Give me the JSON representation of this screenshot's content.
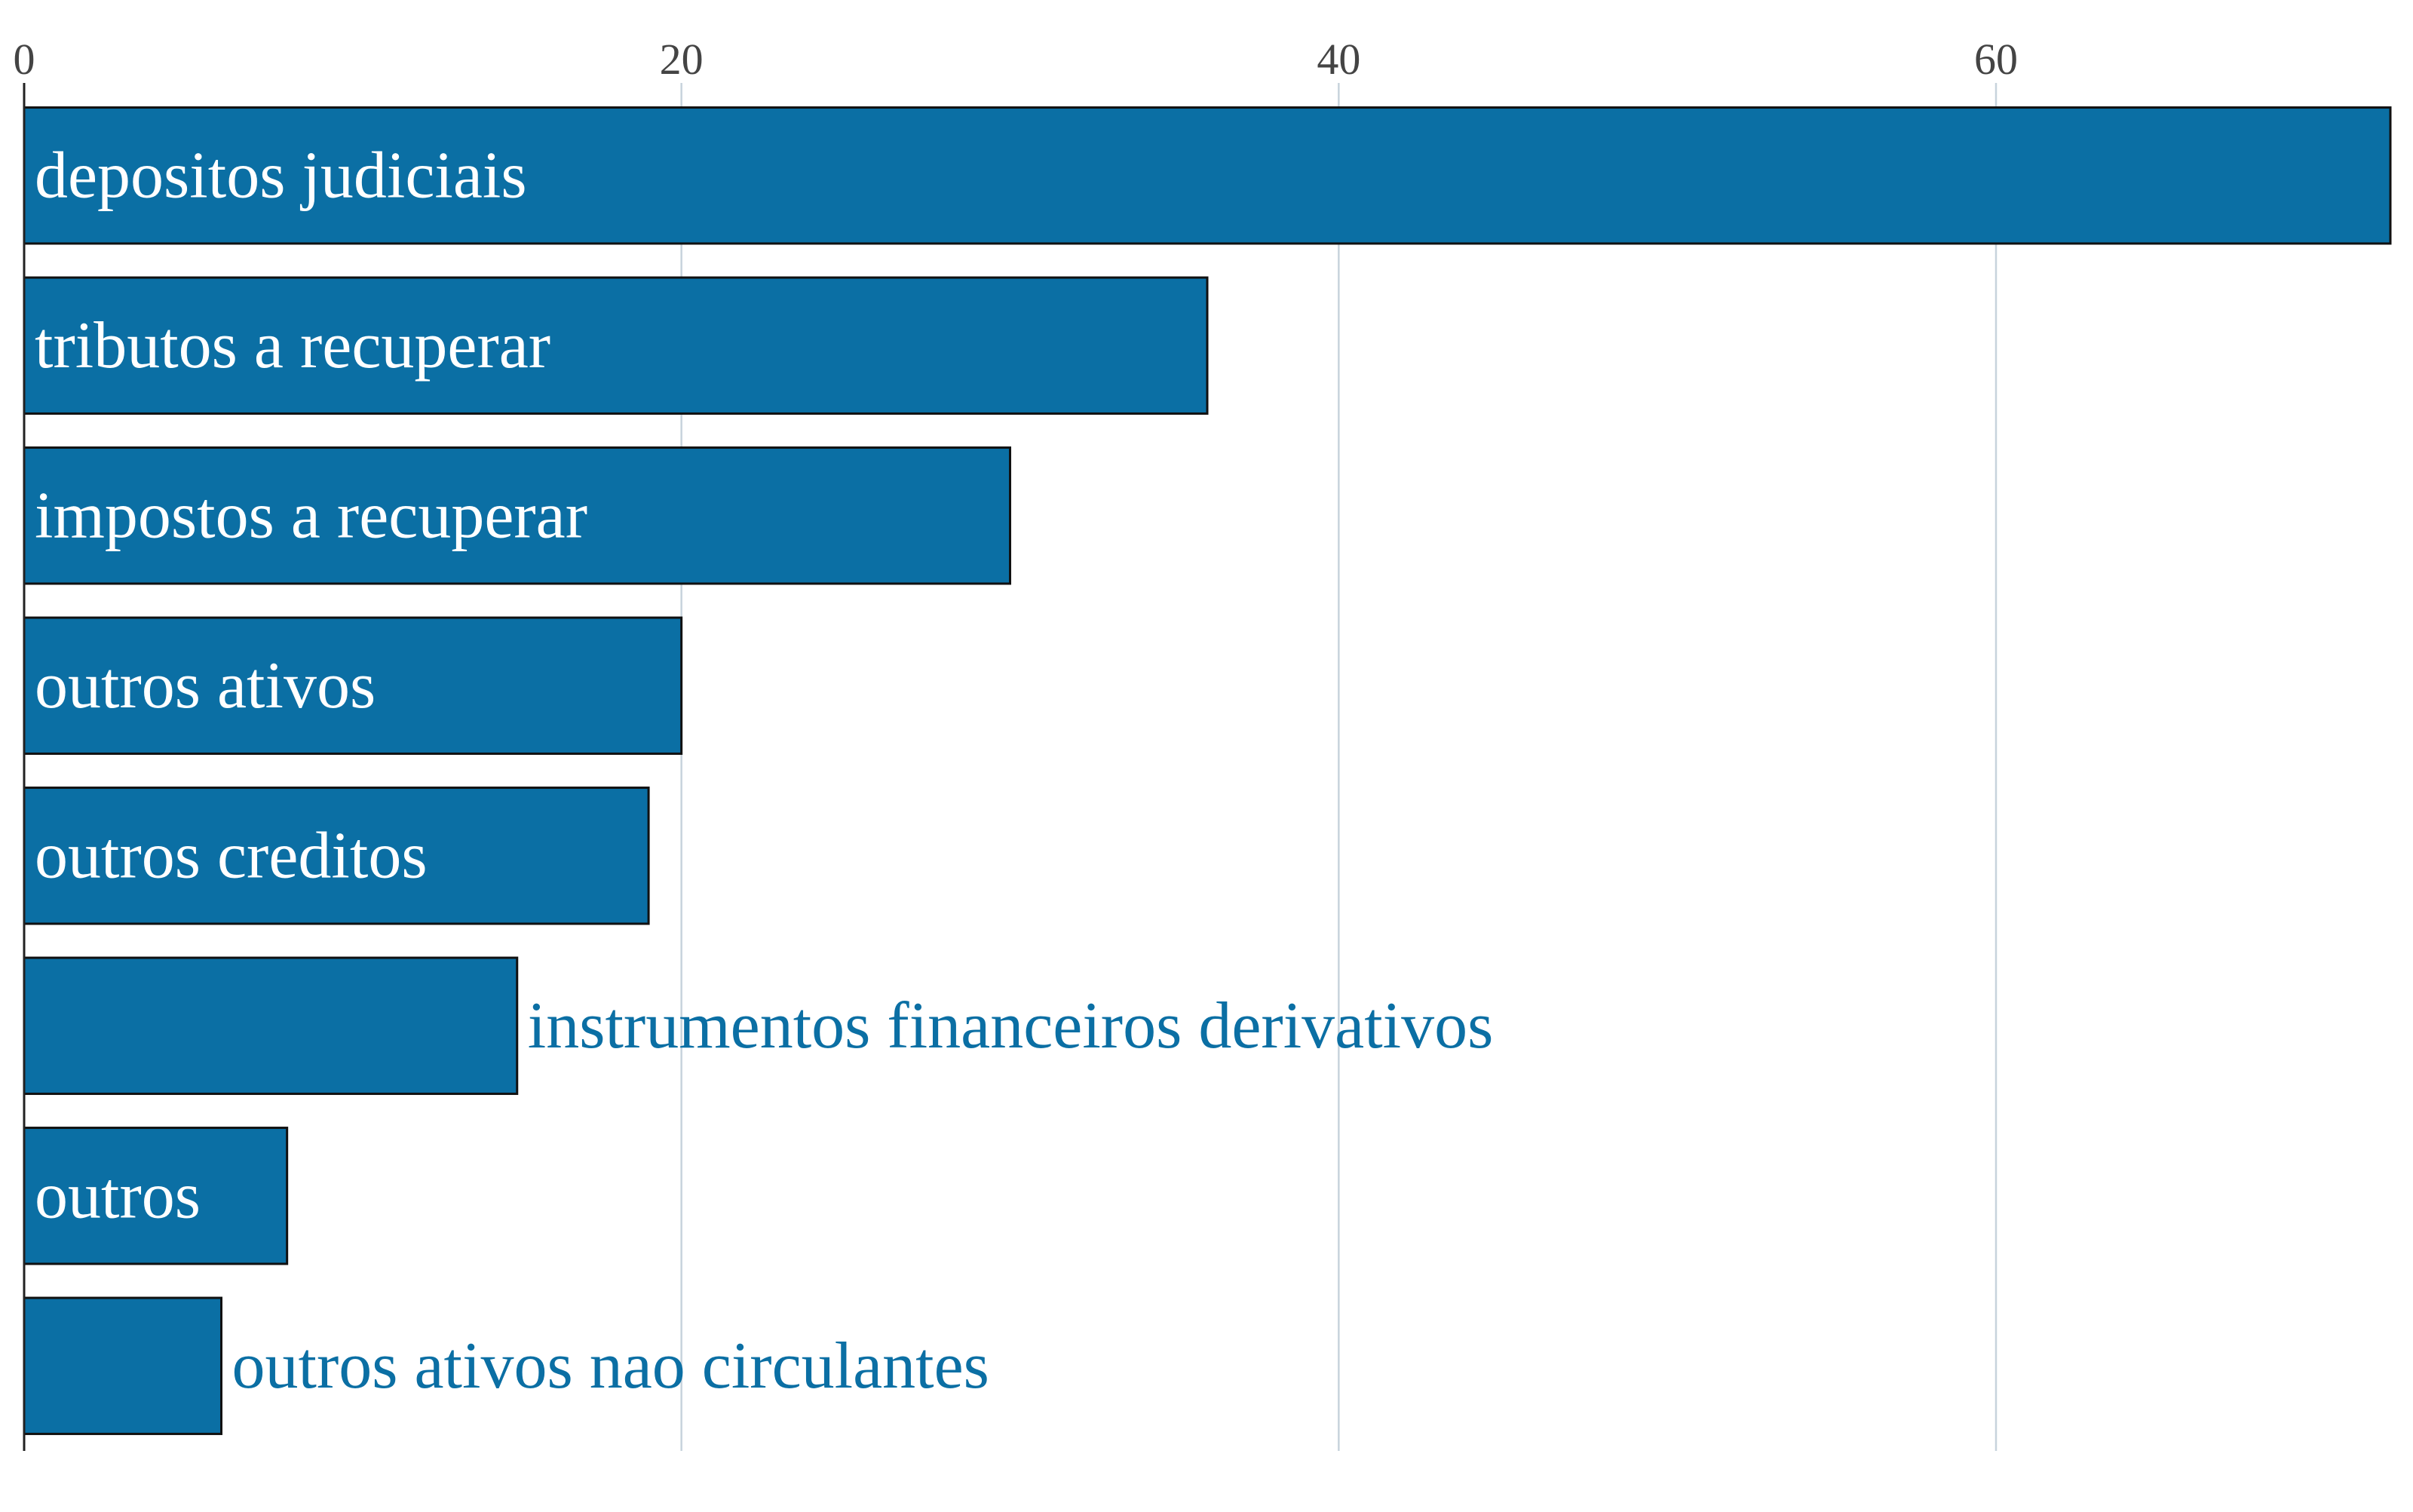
{
  "chart_data": {
    "type": "bar",
    "orientation": "horizontal",
    "categories": [
      "depositos judiciais",
      "tributos a recuperar",
      "impostos a recuperar",
      "outros ativos",
      "outros creditos",
      "instrumentos financeiros derivativos",
      "outros",
      "outros ativos nao circulantes"
    ],
    "values": [
      72,
      36,
      30,
      20,
      19,
      15,
      8,
      6
    ],
    "xlim": [
      0,
      72
    ],
    "x_ticks": [
      0,
      20,
      40,
      60
    ],
    "x_tick_labels": [
      "0",
      "20",
      "40",
      "60"
    ],
    "x_axis_position": "top",
    "grid": true,
    "title": "",
    "xlabel": "",
    "ylabel": "",
    "label_placement": "inside bar when it fits, otherwise after the bar end",
    "colors": {
      "bar": "#0b6fa4",
      "bar_outline": "#111111",
      "label_inside": "#ffffff",
      "label_outside": "#0b6fa4",
      "grid": "#c7d3dc",
      "tick_text": "#444444"
    }
  }
}
